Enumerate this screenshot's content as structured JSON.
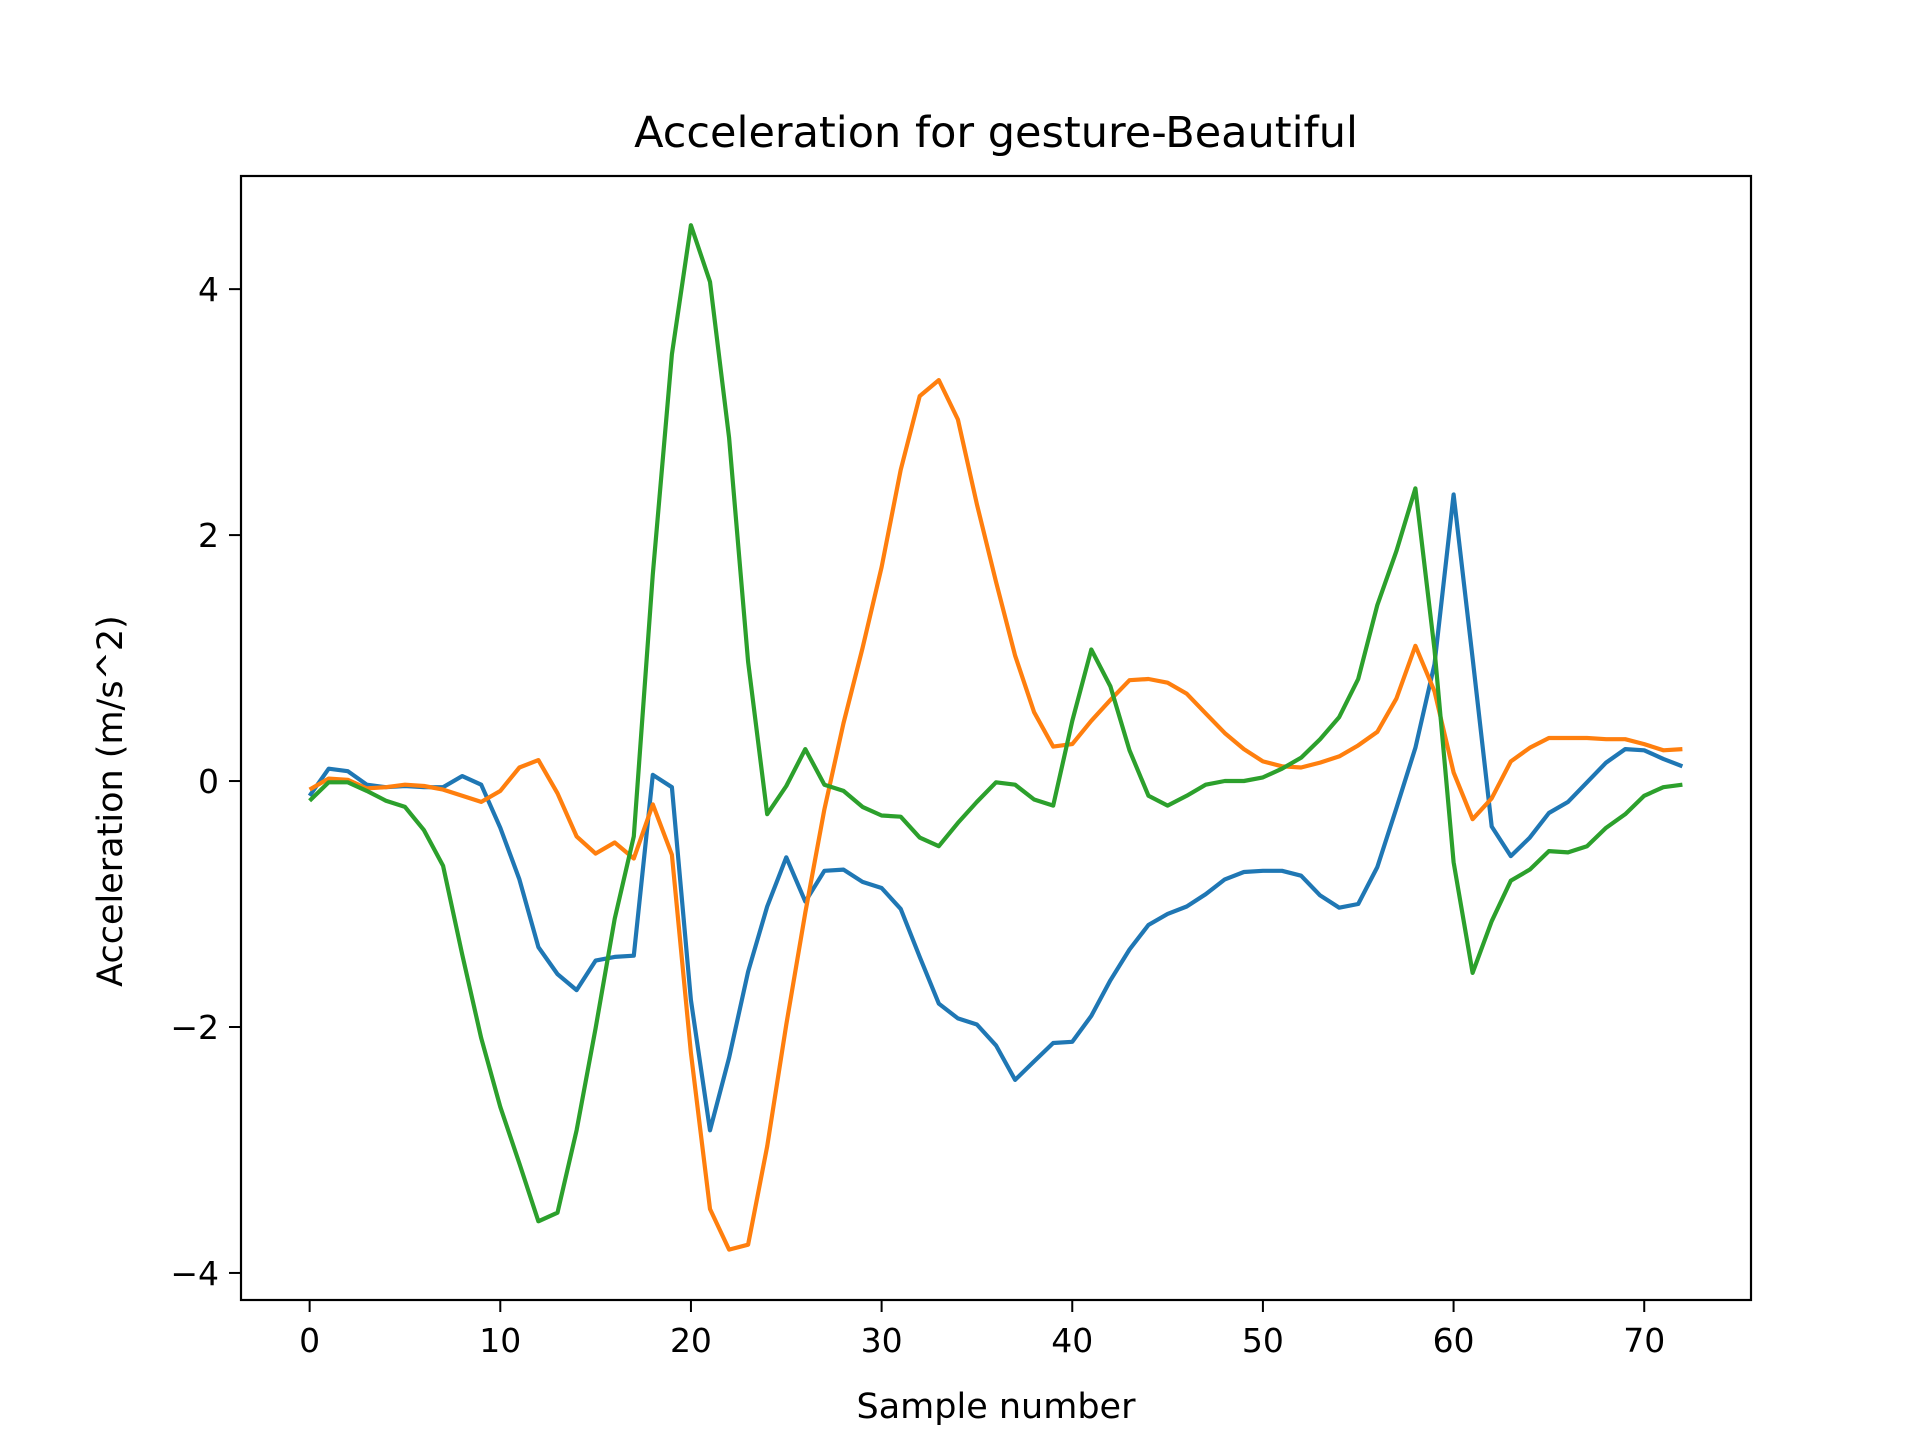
{
  "chart_data": {
    "type": "line",
    "title": "Acceleration for gesture-Beautiful",
    "xlabel": "Sample number",
    "ylabel": "Acceleration (m/s^2)",
    "xlim": [
      -3.6,
      75.6
    ],
    "ylim": [
      -4.22,
      4.92
    ],
    "xticks": [
      0,
      10,
      20,
      30,
      40,
      50,
      60,
      70
    ],
    "xtick_labels": [
      "0",
      "10",
      "20",
      "30",
      "40",
      "50",
      "60",
      "70"
    ],
    "yticks": [
      -4,
      -2,
      0,
      2,
      4
    ],
    "ytick_labels": [
      "−4",
      "−2",
      "0",
      "2",
      "4"
    ],
    "grid": false,
    "series": [
      {
        "color": "#1f77b4",
        "values": [
          -0.12,
          0.1,
          0.08,
          -0.03,
          -0.05,
          -0.04,
          -0.05,
          -0.05,
          0.04,
          -0.03,
          -0.38,
          -0.8,
          -1.35,
          -1.57,
          -1.7,
          -1.46,
          -1.43,
          -1.42,
          0.05,
          -0.05,
          -1.78,
          -2.84,
          -2.25,
          -1.55,
          -1.02,
          -0.62,
          -0.98,
          -0.73,
          -0.72,
          -0.82,
          -0.87,
          -1.04,
          -1.43,
          -1.81,
          -1.93,
          -1.98,
          -2.15,
          -2.43,
          -2.28,
          -2.13,
          -2.12,
          -1.91,
          -1.62,
          -1.37,
          -1.17,
          -1.08,
          -1.02,
          -0.92,
          -0.8,
          -0.74,
          -0.73,
          -0.73,
          -0.77,
          -0.93,
          -1.03,
          -1.0,
          -0.7,
          -0.22,
          0.27,
          0.95,
          2.33,
          1.0,
          -0.37,
          -0.61,
          -0.46,
          -0.26,
          -0.17,
          -0.01,
          0.15,
          0.26,
          0.25,
          0.18,
          0.12
        ]
      },
      {
        "color": "#ff7f0e",
        "values": [
          -0.07,
          0.02,
          0.01,
          -0.06,
          -0.05,
          -0.03,
          -0.04,
          -0.07,
          -0.12,
          -0.17,
          -0.08,
          0.11,
          0.17,
          -0.1,
          -0.45,
          -0.59,
          -0.5,
          -0.63,
          -0.19,
          -0.6,
          -2.21,
          -3.48,
          -3.81,
          -3.77,
          -2.97,
          -1.98,
          -1.07,
          -0.23,
          0.47,
          1.08,
          1.74,
          2.53,
          3.13,
          3.26,
          2.94,
          2.25,
          1.62,
          1.02,
          0.56,
          0.28,
          0.3,
          0.49,
          0.66,
          0.82,
          0.83,
          0.8,
          0.71,
          0.55,
          0.39,
          0.26,
          0.16,
          0.12,
          0.11,
          0.15,
          0.2,
          0.29,
          0.4,
          0.67,
          1.1,
          0.73,
          0.07,
          -0.31,
          -0.14,
          0.16,
          0.27,
          0.35,
          0.35,
          0.35,
          0.34,
          0.34,
          0.3,
          0.25,
          0.26
        ]
      },
      {
        "color": "#2ca02c",
        "values": [
          -0.16,
          -0.01,
          -0.01,
          -0.08,
          -0.16,
          -0.21,
          -0.4,
          -0.69,
          -1.41,
          -2.09,
          -2.65,
          -3.11,
          -3.58,
          -3.51,
          -2.84,
          -2.01,
          -1.12,
          -0.45,
          1.68,
          3.47,
          4.52,
          4.06,
          2.79,
          0.97,
          -0.27,
          -0.04,
          0.26,
          -0.03,
          -0.08,
          -0.21,
          -0.28,
          -0.29,
          -0.46,
          -0.53,
          -0.34,
          -0.17,
          -0.01,
          -0.03,
          -0.15,
          -0.2,
          0.49,
          1.07,
          0.77,
          0.25,
          -0.12,
          -0.2,
          -0.12,
          -0.03,
          0.0,
          0.0,
          0.03,
          0.1,
          0.19,
          0.34,
          0.52,
          0.83,
          1.43,
          1.87,
          2.38,
          1.07,
          -0.66,
          -1.56,
          -1.14,
          -0.81,
          -0.72,
          -0.57,
          -0.58,
          -0.53,
          -0.38,
          -0.27,
          -0.12,
          -0.05,
          -0.03
        ]
      }
    ]
  }
}
